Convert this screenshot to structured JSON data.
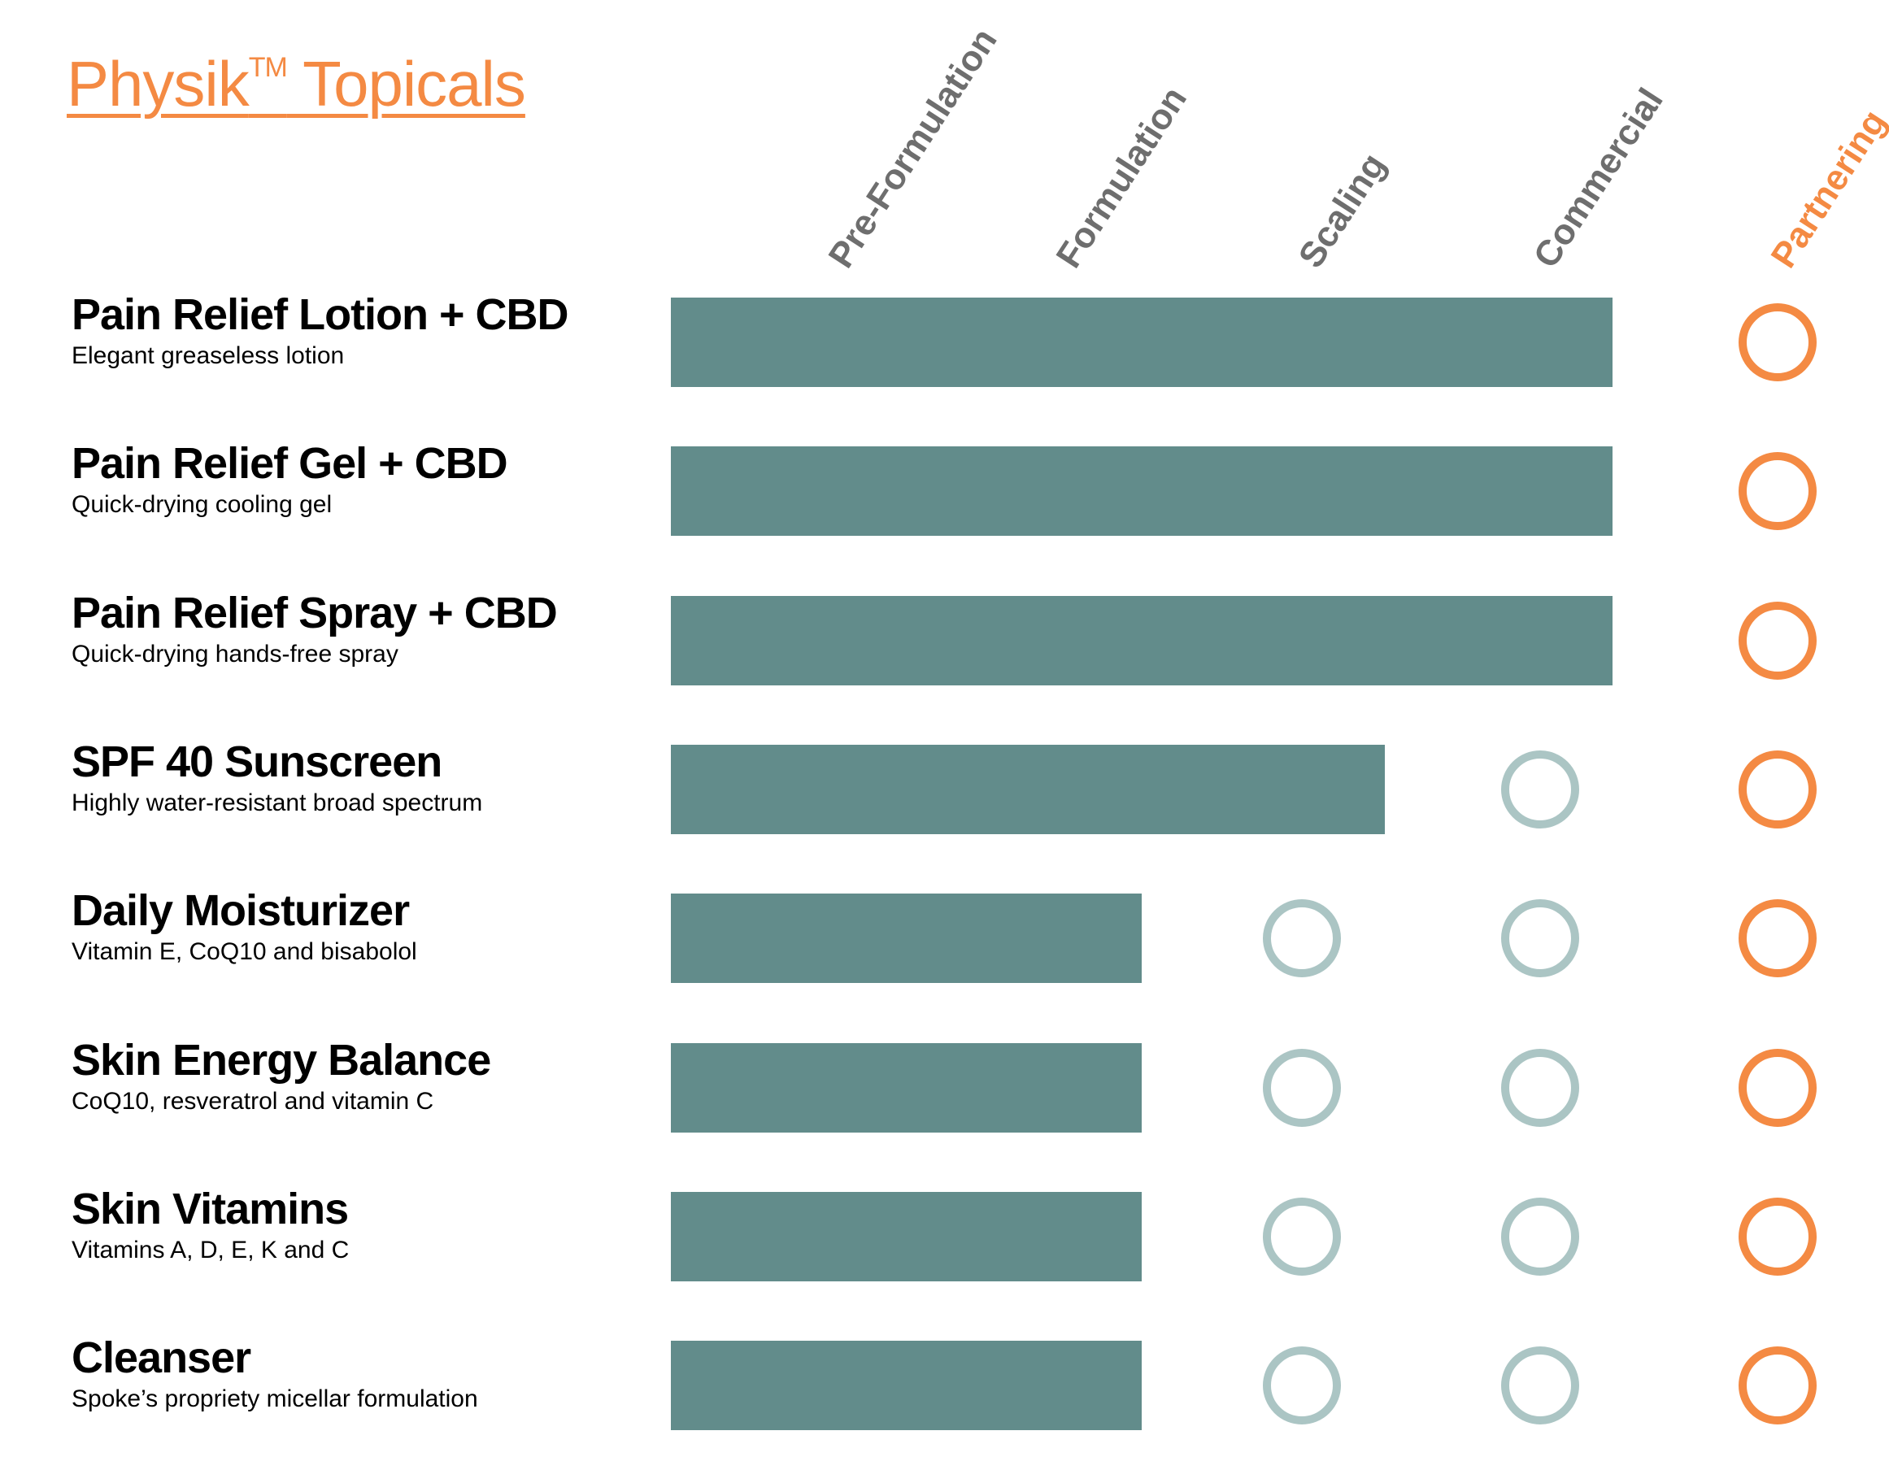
{
  "title": {
    "part1": "Physik",
    "tm": "TM",
    "part2": " Topicals"
  },
  "colors": {
    "bar": "#628c8b",
    "pending": "#abc5c4",
    "accent": "#f48a43",
    "header": "#6e6e6e"
  },
  "chart_data": {
    "type": "table",
    "title": "Physik™ Topicals",
    "stages": [
      "Pre-Formulation",
      "Formulation",
      "Scaling",
      "Commercial",
      "Partnering"
    ],
    "rows": [
      {
        "name": "Pain Relief Lotion + CBD",
        "description": "Elegant greaseless lotion",
        "completed_stages": 4
      },
      {
        "name": "Pain Relief Gel + CBD",
        "description": "Quick-drying cooling gel",
        "completed_stages": 4
      },
      {
        "name": "Pain Relief Spray + CBD",
        "description": "Quick-drying hands-free spray",
        "completed_stages": 4
      },
      {
        "name": "SPF 40 Sunscreen",
        "description": "Highly water-resistant broad spectrum",
        "completed_stages": 3
      },
      {
        "name": "Daily Moisturizer",
        "description": "Vitamin E, CoQ10 and bisabolol",
        "completed_stages": 2
      },
      {
        "name": "Skin Energy Balance",
        "description": "CoQ10, resveratrol and vitamin C",
        "completed_stages": 2
      },
      {
        "name": "Skin Vitamins",
        "description": "Vitamins A, D, E, K and C",
        "completed_stages": 2
      },
      {
        "name": "Cleanser",
        "description": "Spoke’s propriety micellar formulation",
        "completed_stages": 2
      }
    ]
  }
}
